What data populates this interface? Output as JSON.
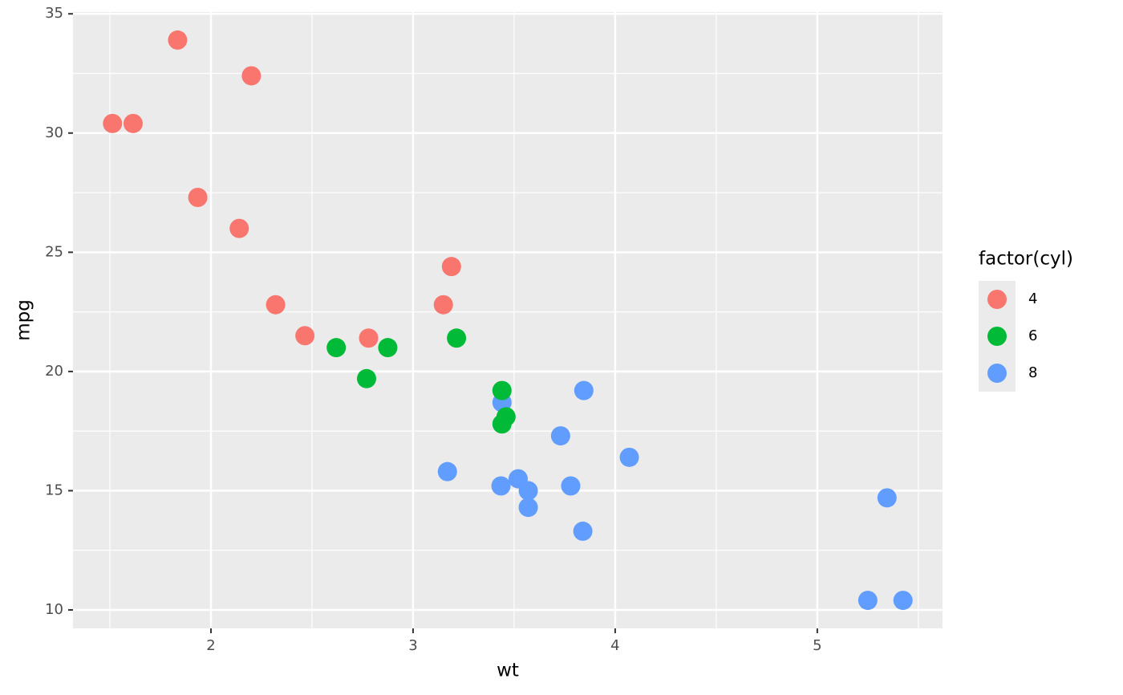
{
  "chart_data": {
    "type": "scatter",
    "x_label": "wt",
    "y_label": "mpg",
    "legend_title": "factor(cyl)",
    "legend_position": "right",
    "grid": true,
    "xlim": [
      1.3175,
      5.6196
    ],
    "ylim": [
      9.225,
      35.075
    ],
    "xticks": [
      2,
      3,
      4,
      5
    ],
    "yticks": [
      10,
      15,
      20,
      25,
      30,
      35
    ],
    "xminor": [
      1.5,
      2.5,
      3.5,
      4.5,
      5.5
    ],
    "yminor": [
      12.5,
      17.5,
      22.5,
      27.5,
      32.5
    ],
    "series": [
      {
        "name": "4",
        "color": "#F8766D",
        "x": [
          2.32,
          3.19,
          3.15,
          2.2,
          1.615,
          1.835,
          2.465,
          1.935,
          2.14,
          1.513,
          2.78
        ],
        "values": [
          22.8,
          24.4,
          22.8,
          32.4,
          30.4,
          33.9,
          21.5,
          27.3,
          26.0,
          30.4,
          21.4
        ]
      },
      {
        "name": "6",
        "color": "#00BA38",
        "x": [
          2.62,
          2.875,
          3.215,
          3.46,
          3.44,
          3.44,
          2.77
        ],
        "values": [
          21.0,
          21.0,
          21.4,
          18.1,
          19.2,
          17.8,
          19.7
        ]
      },
      {
        "name": "8",
        "color": "#619CFF",
        "x": [
          3.44,
          3.57,
          4.07,
          3.73,
          3.78,
          5.25,
          5.424,
          5.345,
          3.52,
          3.435,
          3.84,
          3.845,
          3.17,
          3.57
        ],
        "values": [
          18.7,
          14.3,
          16.4,
          17.3,
          15.2,
          10.4,
          10.4,
          14.7,
          15.5,
          15.2,
          13.3,
          19.2,
          15.8,
          15.0
        ]
      }
    ]
  }
}
